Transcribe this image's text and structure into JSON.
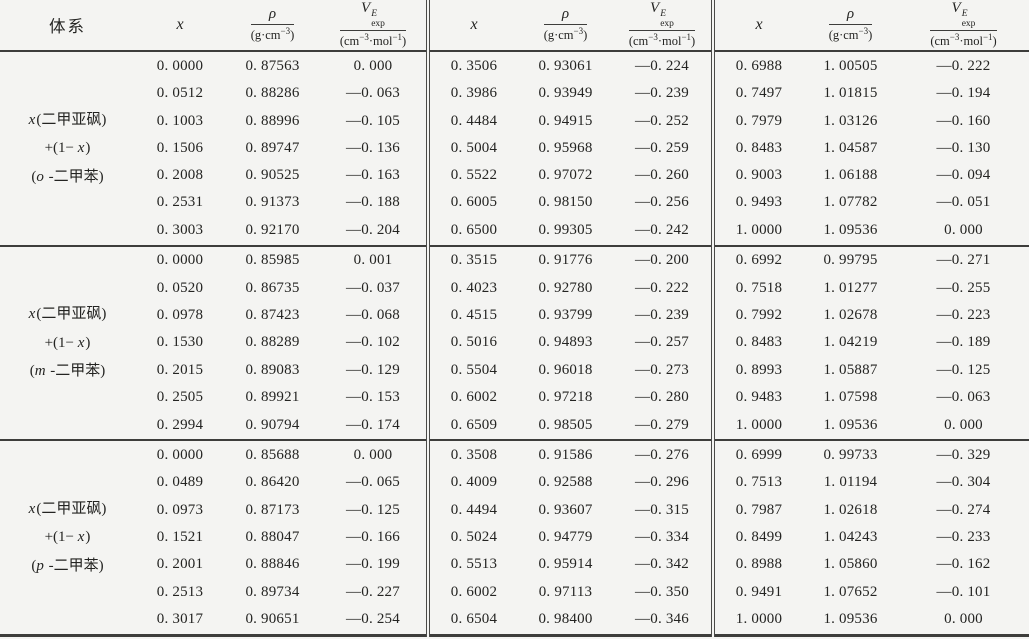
{
  "table": {
    "title_col_header": "体系",
    "col_headers": {
      "x": "x",
      "rho_num": "ρ",
      "rho_den": {
        "pre": "(g·cm",
        "sup": "−3",
        "post": ")"
      },
      "v_num": {
        "base": "V",
        "sup": "E",
        "sub": "exp"
      },
      "v_den": {
        "pre": "(cm",
        "sup1": "−3",
        "mid": "·mol",
        "sup2": "−1",
        "post": ")"
      }
    },
    "blocks": [
      {
        "system_lines": [
          "*x*(二甲亚砜)",
          "+(1− *x*)",
          "(*o* -二甲苯)"
        ],
        "rows": [
          [
            "0. 0000",
            "0. 87563",
            "0. 000",
            "0. 3506",
            "0. 93061",
            "—0. 224",
            "0. 6988",
            "1. 00505",
            "—0. 222"
          ],
          [
            "0. 0512",
            "0. 88286",
            "—0. 063",
            "0. 3986",
            "0. 93949",
            "—0. 239",
            "0. 7497",
            "1. 01815",
            "—0. 194"
          ],
          [
            "0. 1003",
            "0. 88996",
            "—0. 105",
            "0. 4484",
            "0. 94915",
            "—0. 252",
            "0. 7979",
            "1. 03126",
            "—0. 160"
          ],
          [
            "0. 1506",
            "0. 89747",
            "—0. 136",
            "0. 5004",
            "0. 95968",
            "—0. 259",
            "0. 8483",
            "1. 04587",
            "—0. 130"
          ],
          [
            "0. 2008",
            "0. 90525",
            "—0. 163",
            "0. 5522",
            "0. 97072",
            "—0. 260",
            "0. 9003",
            "1. 06188",
            "—0. 094"
          ],
          [
            "0. 2531",
            "0. 91373",
            "—0. 188",
            "0. 6005",
            "0. 98150",
            "—0. 256",
            "0. 9493",
            "1. 07782",
            "—0. 051"
          ],
          [
            "0. 3003",
            "0. 92170",
            "—0. 204",
            "0. 6500",
            "0. 99305",
            "—0. 242",
            "1. 0000",
            "1. 09536",
            "0. 000"
          ]
        ]
      },
      {
        "system_lines": [
          "*x*(二甲亚砜)",
          "+(1− *x*)",
          "(*m* -二甲苯)"
        ],
        "rows": [
          [
            "0. 0000",
            "0. 85985",
            "0. 001",
            "0. 3515",
            "0. 91776",
            "—0. 200",
            "0. 6992",
            "0. 99795",
            "—0. 271"
          ],
          [
            "0. 0520",
            "0. 86735",
            "—0. 037",
            "0. 4023",
            "0. 92780",
            "—0. 222",
            "0. 7518",
            "1. 01277",
            "—0. 255"
          ],
          [
            "0. 0978",
            "0. 87423",
            "—0. 068",
            "0. 4515",
            "0. 93799",
            "—0. 239",
            "0. 7992",
            "1. 02678",
            "—0. 223"
          ],
          [
            "0. 1530",
            "0. 88289",
            "—0. 102",
            "0. 5016",
            "0. 94893",
            "—0. 257",
            "0. 8483",
            "1. 04219",
            "—0. 189"
          ],
          [
            "0. 2015",
            "0. 89083",
            "—0. 129",
            "0. 5504",
            "0. 96018",
            "—0. 273",
            "0. 8993",
            "1. 05887",
            "—0. 125"
          ],
          [
            "0. 2505",
            "0. 89921",
            "—0. 153",
            "0. 6002",
            "0. 97218",
            "—0. 280",
            "0. 9483",
            "1. 07598",
            "—0. 063"
          ],
          [
            "0. 2994",
            "0. 90794",
            "—0. 174",
            "0. 6509",
            "0. 98505",
            "—0. 279",
            "1. 0000",
            "1. 09536",
            "0. 000"
          ]
        ]
      },
      {
        "system_lines": [
          "*x*(二甲亚砜)",
          "+(1− *x*)",
          "(*p* -二甲苯)"
        ],
        "rows": [
          [
            "0. 0000",
            "0. 85688",
            "0. 000",
            "0. 3508",
            "0. 91586",
            "—0. 276",
            "0. 6999",
            "0. 99733",
            "—0. 329"
          ],
          [
            "0. 0489",
            "0. 86420",
            "—0. 065",
            "0. 4009",
            "0. 92588",
            "—0. 296",
            "0. 7513",
            "1. 01194",
            "—0. 304"
          ],
          [
            "0. 0973",
            "0. 87173",
            "—0. 125",
            "0. 4494",
            "0. 93607",
            "—0. 315",
            "0. 7987",
            "1. 02618",
            "—0. 274"
          ],
          [
            "0. 1521",
            "0. 88047",
            "—0. 166",
            "0. 5024",
            "0. 94779",
            "—0. 334",
            "0. 8499",
            "1. 04243",
            "—0. 233"
          ],
          [
            "0. 2001",
            "0. 88846",
            "—0. 199",
            "0. 5513",
            "0. 95914",
            "—0. 342",
            "0. 8988",
            "1. 05860",
            "—0. 162"
          ],
          [
            "0. 2513",
            "0. 89734",
            "—0. 227",
            "0. 6002",
            "0. 97113",
            "—0. 350",
            "0. 9491",
            "1. 07652",
            "—0. 101"
          ],
          [
            "0. 3017",
            "0. 90651",
            "—0. 254",
            "0. 6504",
            "0. 98400",
            "—0. 346",
            "1. 0000",
            "1. 09536",
            "0. 000"
          ]
        ]
      }
    ]
  }
}
